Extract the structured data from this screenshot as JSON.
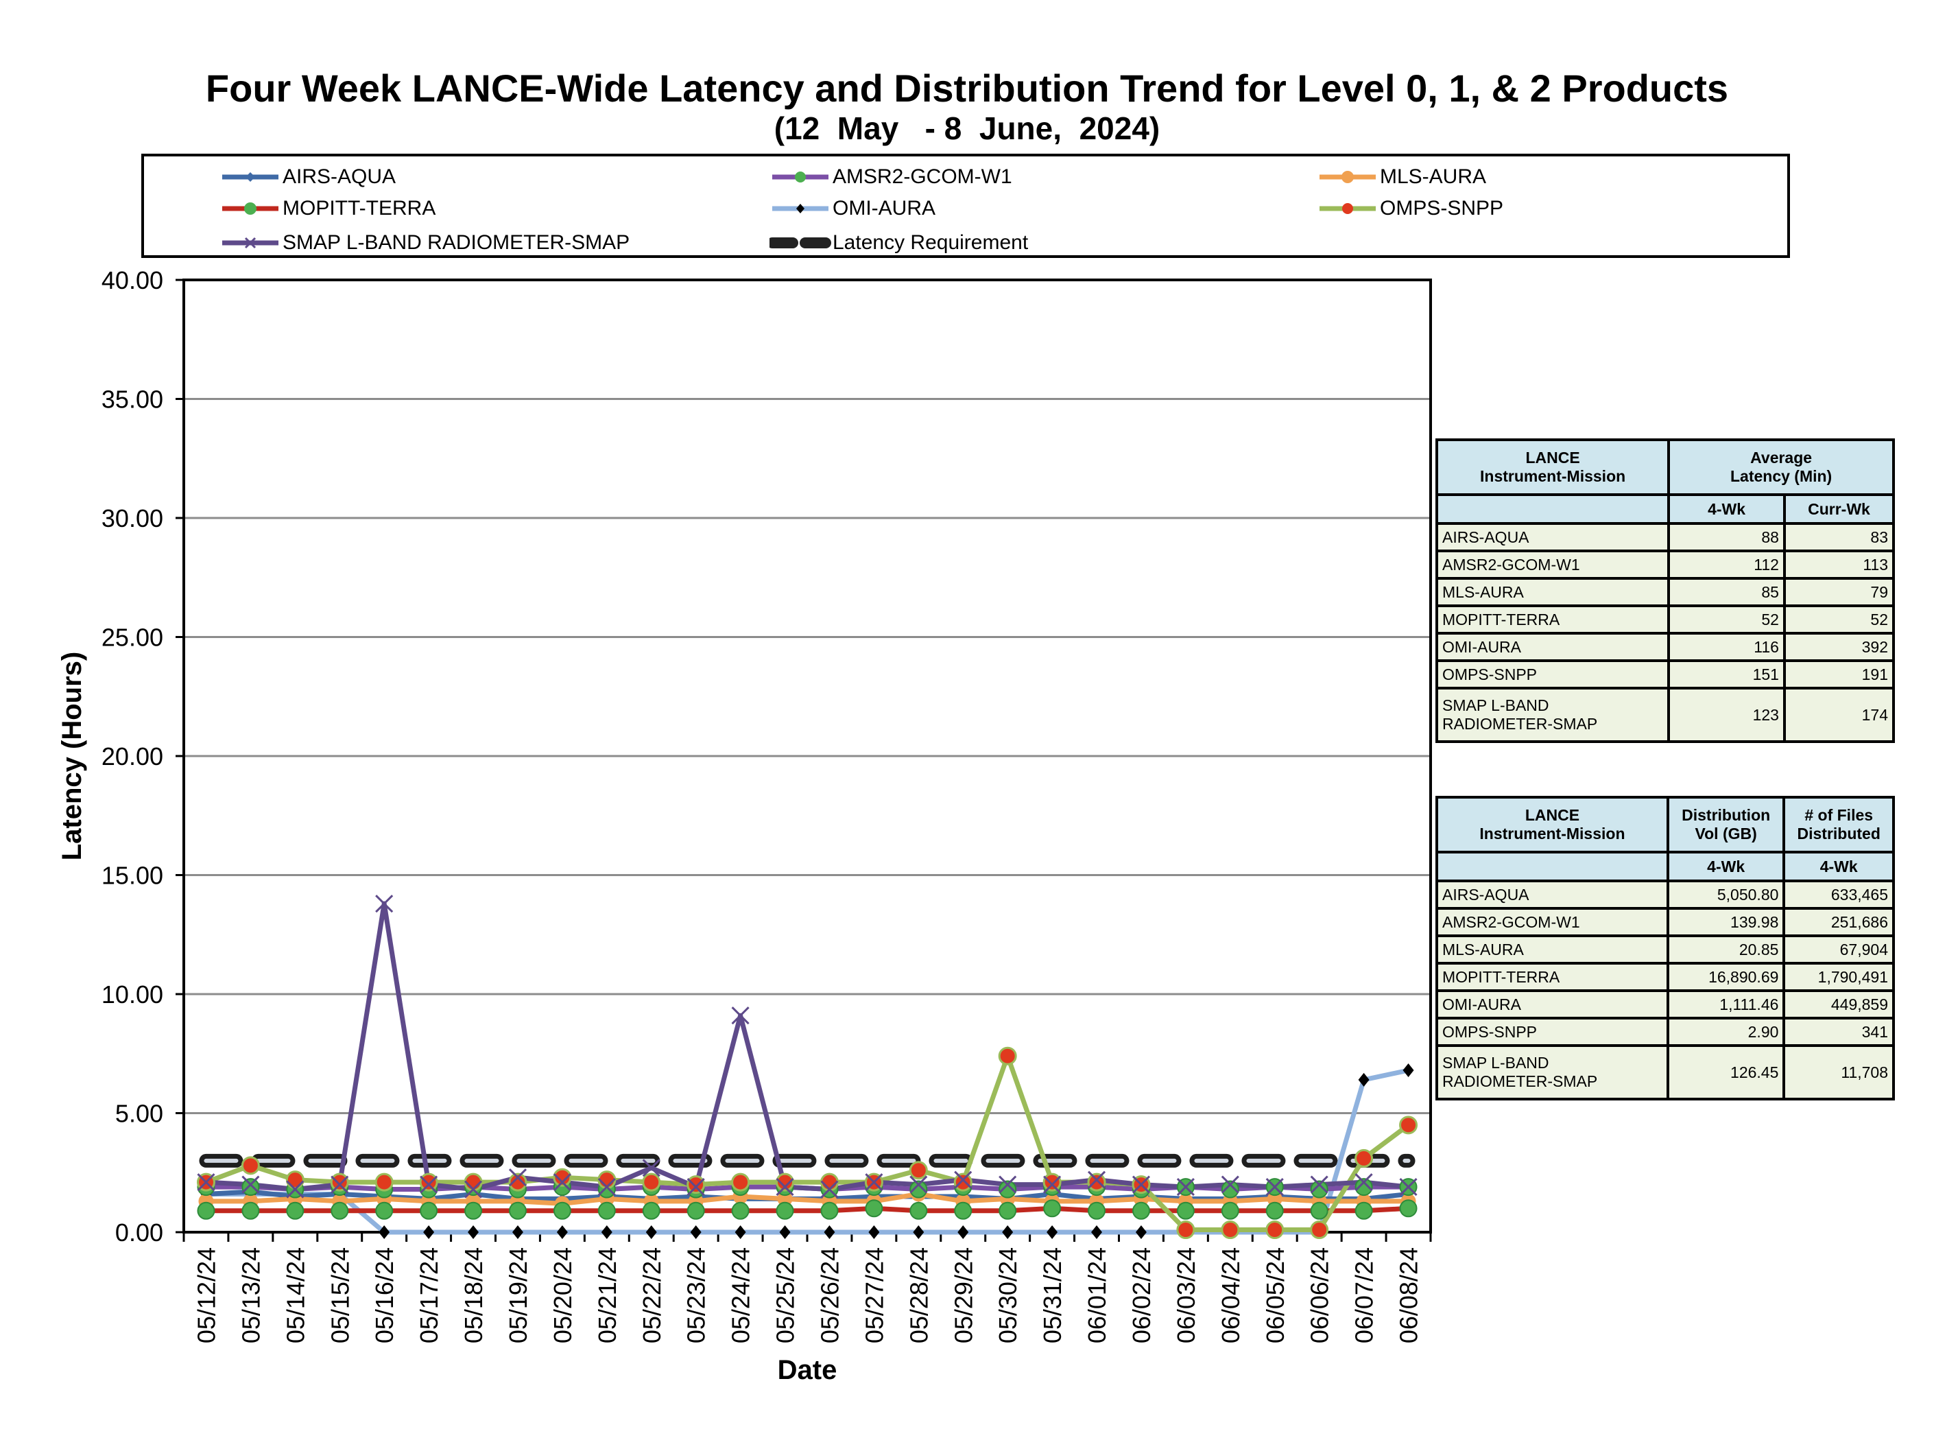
{
  "chart_data": {
    "type": "line",
    "title": "Four Week LANCE-Wide Latency and Distribution Trend for Level 0, 1, & 2 Products",
    "subtitle": "(12  May   - 8  June,  2024)",
    "xlabel": "Date",
    "ylabel": "Latency (Hours)",
    "ylim": [
      0,
      40
    ],
    "yticks": [
      "0.00",
      "5.00",
      "10.00",
      "15.00",
      "20.00",
      "25.00",
      "30.00",
      "35.00",
      "40.00"
    ],
    "grid": true,
    "legend_position": "top",
    "x": [
      "05/12/24",
      "05/13/24",
      "05/14/24",
      "05/15/24",
      "05/16/24",
      "05/17/24",
      "05/18/24",
      "05/19/24",
      "05/20/24",
      "05/21/24",
      "05/22/24",
      "05/23/24",
      "05/24/24",
      "05/25/24",
      "05/26/24",
      "05/27/24",
      "05/28/24",
      "05/29/24",
      "05/30/24",
      "05/31/24",
      "06/01/24",
      "06/02/24",
      "06/03/24",
      "06/04/24",
      "06/05/24",
      "06/06/24",
      "06/07/24",
      "06/08/24"
    ],
    "series": [
      {
        "name": "AIRS-AQUA",
        "color": "#3f6aa6",
        "marker": "diamond-small",
        "values": [
          1.6,
          1.7,
          1.5,
          1.6,
          1.5,
          1.4,
          1.6,
          1.4,
          1.4,
          1.5,
          1.4,
          1.5,
          1.4,
          1.4,
          1.4,
          1.5,
          1.5,
          1.5,
          1.4,
          1.6,
          1.4,
          1.5,
          1.4,
          1.4,
          1.5,
          1.4,
          1.4,
          1.6
        ]
      },
      {
        "name": "AMSR2-GCOM-W1",
        "color": "#7b4fa6",
        "marker": "circle-green",
        "values": [
          1.9,
          1.9,
          1.8,
          1.9,
          1.8,
          1.8,
          1.9,
          1.8,
          1.9,
          1.8,
          1.9,
          1.8,
          1.9,
          1.9,
          1.8,
          1.9,
          1.8,
          1.9,
          1.8,
          1.9,
          1.9,
          1.8,
          1.9,
          1.8,
          1.9,
          1.8,
          1.9,
          1.9
        ]
      },
      {
        "name": "MLS-AURA",
        "color": "#f0a050",
        "marker": "circle-orange",
        "values": [
          1.3,
          1.3,
          1.4,
          1.3,
          1.4,
          1.3,
          1.3,
          1.3,
          1.2,
          1.4,
          1.3,
          1.3,
          1.5,
          1.4,
          1.3,
          1.3,
          1.6,
          1.3,
          1.4,
          1.3,
          1.3,
          1.4,
          1.3,
          1.3,
          1.4,
          1.3,
          1.3,
          1.3
        ]
      },
      {
        "name": "MOPITT-TERRA",
        "color": "#c0281e",
        "marker": "circle-green",
        "values": [
          0.9,
          0.9,
          0.9,
          0.9,
          0.9,
          0.9,
          0.9,
          0.9,
          0.9,
          0.9,
          0.9,
          0.9,
          0.9,
          0.9,
          0.9,
          1.0,
          0.9,
          0.9,
          0.9,
          1.0,
          0.9,
          0.9,
          0.9,
          0.9,
          0.9,
          0.9,
          0.9,
          1.0
        ]
      },
      {
        "name": "OMI-AURA",
        "color": "#8fb2de",
        "marker": "diamond-black",
        "values": [
          1.6,
          1.6,
          1.6,
          1.6,
          0.0,
          0.0,
          0.0,
          0.0,
          0.0,
          0.0,
          0.0,
          0.0,
          0.0,
          0.0,
          0.0,
          0.0,
          0.0,
          0.0,
          0.0,
          0.0,
          0.0,
          0.0,
          0.0,
          0.0,
          0.0,
          0.0,
          6.4,
          6.8
        ]
      },
      {
        "name": "OMPS-SNPP",
        "color": "#9bbb59",
        "marker": "circle-red",
        "values": [
          2.1,
          2.8,
          2.2,
          2.1,
          2.1,
          2.1,
          2.1,
          2.1,
          2.3,
          2.2,
          2.1,
          2.0,
          2.1,
          2.1,
          2.1,
          2.1,
          2.6,
          2.1,
          7.4,
          2.1,
          2.1,
          2.0,
          0.1,
          0.1,
          0.1,
          0.1,
          3.1,
          4.5
        ]
      },
      {
        "name": "SMAP L-BAND RADIOMETER-SMAP",
        "color": "#5e4a8a",
        "marker": "x",
        "values": [
          2.1,
          2.0,
          1.8,
          2.0,
          13.8,
          2.0,
          1.8,
          2.3,
          2.1,
          1.9,
          2.7,
          1.9,
          9.1,
          1.9,
          1.8,
          2.1,
          2.0,
          2.2,
          2.0,
          2.0,
          2.2,
          2.0,
          1.9,
          2.0,
          1.9,
          2.0,
          2.1,
          1.9
        ]
      },
      {
        "name": "Latency Requirement",
        "color": "#222222",
        "marker": "dash",
        "values": [
          3,
          3,
          3,
          3,
          3,
          3,
          3,
          3,
          3,
          3,
          3,
          3,
          3,
          3,
          3,
          3,
          3,
          3,
          3,
          3,
          3,
          3,
          3,
          3,
          3,
          3,
          3,
          3
        ]
      }
    ]
  },
  "latency_table": {
    "header_col1": [
      "LANCE",
      "Instrument-Mission"
    ],
    "header_col2": [
      "Average",
      "Latency (Min)"
    ],
    "sub_4wk": "4-Wk",
    "sub_curr": "Curr-Wk",
    "rows": [
      {
        "name": "AIRS-AQUA",
        "four_wk": "88",
        "curr_wk": "83"
      },
      {
        "name": "AMSR2-GCOM-W1",
        "four_wk": "112",
        "curr_wk": "113"
      },
      {
        "name": "MLS-AURA",
        "four_wk": "85",
        "curr_wk": "79"
      },
      {
        "name": "MOPITT-TERRA",
        "four_wk": "52",
        "curr_wk": "52"
      },
      {
        "name": "OMI-AURA",
        "four_wk": "116",
        "curr_wk": "392"
      },
      {
        "name": "OMPS-SNPP",
        "four_wk": "151",
        "curr_wk": "191"
      },
      {
        "name": "SMAP L-BAND RADIOMETER-SMAP",
        "four_wk": "123",
        "curr_wk": "174"
      }
    ]
  },
  "distribution_table": {
    "header_col1": [
      "LANCE",
      "Instrument-Mission"
    ],
    "header_col2": [
      "Distribution",
      "Vol (GB)"
    ],
    "header_col3": [
      "# of Files",
      "Distributed"
    ],
    "sub_2": "4-Wk",
    "sub_3": "4-Wk",
    "rows": [
      {
        "name": "AIRS-AQUA",
        "vol": "5,050.80",
        "files": "633,465"
      },
      {
        "name": "AMSR2-GCOM-W1",
        "vol": "139.98",
        "files": "251,686"
      },
      {
        "name": "MLS-AURA",
        "vol": "20.85",
        "files": "67,904"
      },
      {
        "name": "MOPITT-TERRA",
        "vol": "16,890.69",
        "files": "1,790,491"
      },
      {
        "name": "OMI-AURA",
        "vol": "1,111.46",
        "files": "449,859"
      },
      {
        "name": "OMPS-SNPP",
        "vol": "2.90",
        "files": "341"
      },
      {
        "name": "SMAP L-BAND RADIOMETER-SMAP",
        "vol": "126.45",
        "files": "11,708"
      }
    ]
  }
}
